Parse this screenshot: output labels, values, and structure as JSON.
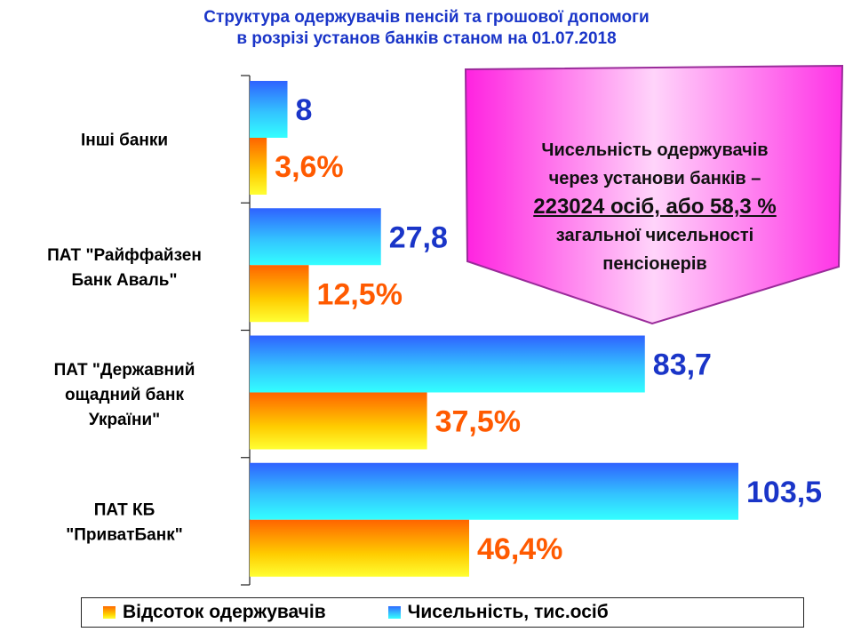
{
  "title_line1": "Структура одержувачів пенсій та грошової допомоги",
  "title_line2": "в розрізі установ банків станом на 01.07.2018",
  "callout": {
    "line1": "Чисельність одержувачів",
    "line2": "через установи банків –",
    "line3": "223024 осіб, або 58,3 %",
    "line4": "загальної чисельності",
    "line5": "пенсіонерів"
  },
  "colors": {
    "title": "#1a35c8",
    "count_label": "#1a35c8",
    "percent_label": "#ff5a00",
    "callout_fill": "#ff44e8"
  },
  "chart_data": {
    "type": "bar",
    "orientation": "horizontal",
    "categories": [
      [
        "Інші банки"
      ],
      [
        "ПАТ \"Райффайзен",
        "Банк Аваль\""
      ],
      [
        "ПАТ \"Державний",
        "ощадний банк",
        "України\""
      ],
      [
        "ПАТ КБ",
        "\"ПриватБанк\""
      ]
    ],
    "series": [
      {
        "name": "Чисельність, тис.осіб",
        "values": [
          8,
          27.8,
          83.7,
          103.5
        ],
        "labels": [
          "8",
          "27,8",
          "83,7",
          "103,5"
        ]
      },
      {
        "name": "Відсоток одержувачів",
        "values": [
          3.6,
          12.5,
          37.5,
          46.4
        ],
        "labels": [
          "3,6%",
          "12,5%",
          "37,5%",
          "46,4%"
        ]
      }
    ],
    "legend": [
      "Відсоток одержувачів",
      "Чисельність, тис.осіб"
    ],
    "legend_position": "bottom",
    "grid": false
  }
}
